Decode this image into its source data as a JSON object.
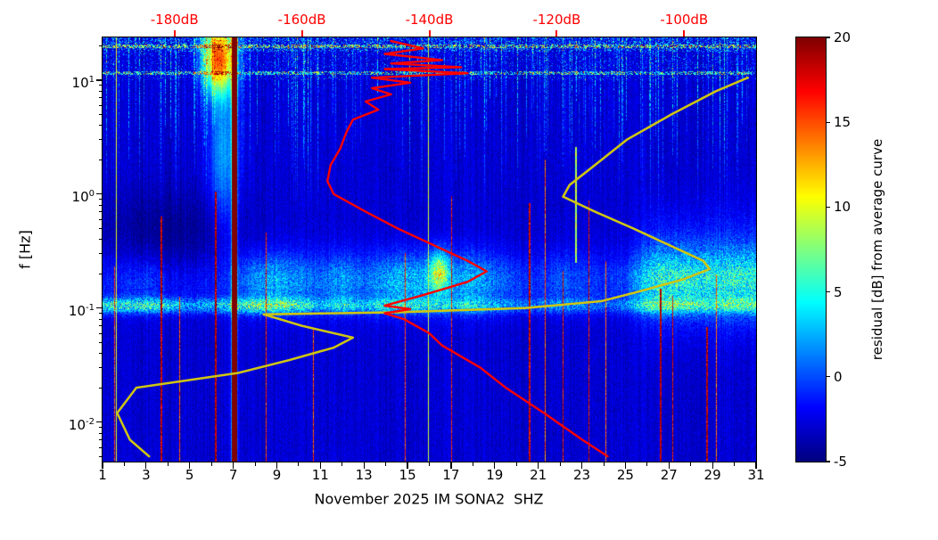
{
  "chart_data": {
    "type": "heatmap",
    "title": "",
    "x_axis": {
      "label": "November 2025 IM SONA2  SHZ",
      "unit": "day of month",
      "min": 1,
      "max": 31,
      "major_ticks": [
        1,
        3,
        5,
        7,
        9,
        11,
        13,
        15,
        17,
        19,
        21,
        23,
        25,
        27,
        29,
        31
      ],
      "minor_ticks": [
        2,
        4,
        6,
        8,
        10,
        12,
        14,
        16,
        18,
        20,
        22,
        24,
        26,
        28,
        30
      ]
    },
    "y_axis": {
      "label": "f [Hz]",
      "scale": "log",
      "min_hz": 0.0045,
      "max_hz": 23.7,
      "major_tick_exponents": [
        1,
        0,
        -1,
        -2
      ]
    },
    "top_axis": {
      "color": "#ff0000",
      "db_at_left_edge": -191.3,
      "db_at_right_edge": -88.7,
      "ticks_db": [
        -180,
        -160,
        -140,
        -120,
        -100
      ],
      "tick_labels": [
        "-180dB",
        "-160dB",
        "-140dB",
        "-120dB",
        "-100dB"
      ]
    },
    "colorbar": {
      "label": "residual [dB] from average curve",
      "min": -5,
      "max": 20,
      "ticks": [
        20,
        15,
        10,
        5,
        0,
        -5
      ],
      "colormap": "jet"
    },
    "heatmap": {
      "description": "Daily seismic PSD residual spectrogram: dark blue background (~-4 dB) with vertical transient streaks, bright cyan/yellow microseism band near 0.1-0.3 Hz, a saturated dark-red full-height event band near day 7, warm high-frequency blob days 5.5-7.5, cyan haze days 26-31, thin red calibration-like lines in the low-frequency half",
      "background_residual_db": [
        -3.9,
        -2.1
      ],
      "microseism_band": {
        "center_hz": 0.17,
        "sigma_log10": 0.18,
        "daily_amplitude": [
          0.3,
          0.35,
          0.5,
          0.3,
          0.25,
          0.3,
          0.35,
          0.8,
          0.95,
          0.75,
          0.6,
          0.85,
          0.6,
          0.9,
          1.0,
          0.95,
          0.85,
          0.95,
          0.7,
          0.45,
          0.35,
          0.55,
          0.45,
          0.35,
          0.45,
          0.75,
          0.85,
          0.8,
          0.7,
          0.85,
          0.8
        ]
      },
      "narrow_band_0p1hz": {
        "center_hz": 0.105,
        "sigma_log10": 0.045,
        "daily_amplitude": [
          0.95,
          0.9,
          0.95,
          0.85,
          0.55,
          0.65,
          0.85,
          0.95,
          0.9,
          0.75,
          0.35,
          0.5,
          0.4,
          0.55,
          0.45,
          0.4,
          0.35,
          0.4,
          0.3,
          0.25,
          0.3,
          0.35,
          0.3,
          0.2,
          0.3,
          0.5,
          0.55,
          0.5,
          0.4,
          0.5,
          0.45
        ]
      },
      "red_event": {
        "day_start": 6.94,
        "day_end": 7.16,
        "residual_db": 20
      },
      "high_freq_blob": {
        "day_center": 6.35,
        "freq_center_hz": 15.8,
        "peak_residual_db": 17
      },
      "right_haze": {
        "day_start": 25,
        "freq_center_hz": 0.2,
        "residual_db": 3.5
      },
      "bright_spot": {
        "day_center": 16.45,
        "freq_center_hz": 0.21,
        "residual_db": 11
      },
      "cyan_line": {
        "day": 22.72,
        "freq_range_hz": [
          0.25,
          2.6
        ],
        "residual_db": 9
      }
    },
    "curves": [
      {
        "name": "station average curve (yellow)",
        "color": "#cdc414",
        "points_f_hz_db": [
          [
            10.5,
            -90
          ],
          [
            8,
            -95
          ],
          [
            5,
            -102
          ],
          [
            3,
            -109
          ],
          [
            1.8,
            -114
          ],
          [
            1.2,
            -118
          ],
          [
            0.95,
            -119
          ],
          [
            0.7,
            -114
          ],
          [
            0.5,
            -108
          ],
          [
            0.35,
            -102
          ],
          [
            0.26,
            -97
          ],
          [
            0.22,
            -96
          ],
          [
            0.18,
            -100
          ],
          [
            0.14,
            -107
          ],
          [
            0.115,
            -113
          ],
          [
            0.1,
            -125
          ],
          [
            0.092,
            -145
          ],
          [
            0.088,
            -166
          ],
          [
            0.07,
            -160
          ],
          [
            0.055,
            -152
          ],
          [
            0.045,
            -155
          ],
          [
            0.035,
            -162
          ],
          [
            0.027,
            -170
          ],
          [
            0.02,
            -186
          ],
          [
            0.012,
            -189
          ],
          [
            0.007,
            -187
          ],
          [
            0.005,
            -184
          ]
        ]
      },
      {
        "name": "reference average curve (red)",
        "color": "#ff0000",
        "points_f_hz_db": [
          [
            22,
            -146
          ],
          [
            19,
            -141
          ],
          [
            17,
            -147
          ],
          [
            15,
            -138
          ],
          [
            14,
            -146
          ],
          [
            13,
            -135
          ],
          [
            12.5,
            -147
          ],
          [
            11.5,
            -134
          ],
          [
            10.5,
            -149
          ],
          [
            9.5,
            -143
          ],
          [
            8.5,
            -149
          ],
          [
            7.5,
            -146
          ],
          [
            6.5,
            -150
          ],
          [
            5.5,
            -148
          ],
          [
            4.5,
            -152
          ],
          [
            3.5,
            -153
          ],
          [
            2.5,
            -154
          ],
          [
            1.8,
            -155.5
          ],
          [
            1.3,
            -156
          ],
          [
            1.0,
            -155
          ],
          [
            0.7,
            -150
          ],
          [
            0.5,
            -145
          ],
          [
            0.35,
            -139
          ],
          [
            0.26,
            -134
          ],
          [
            0.21,
            -131
          ],
          [
            0.17,
            -134
          ],
          [
            0.13,
            -141
          ],
          [
            0.105,
            -147
          ],
          [
            0.098,
            -143
          ],
          [
            0.09,
            -147
          ],
          [
            0.08,
            -144
          ],
          [
            0.06,
            -140
          ],
          [
            0.047,
            -138
          ],
          [
            0.03,
            -132
          ],
          [
            0.02,
            -128
          ],
          [
            0.012,
            -122
          ],
          [
            0.007,
            -116
          ],
          [
            0.005,
            -112
          ]
        ]
      }
    ]
  }
}
